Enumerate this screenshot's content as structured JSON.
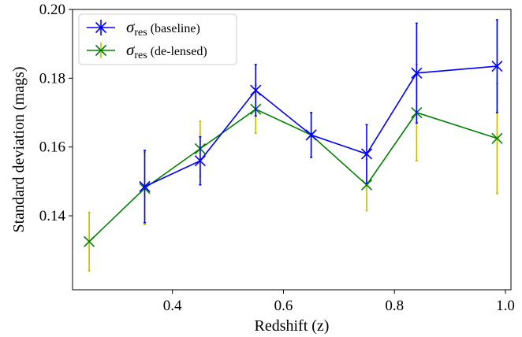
{
  "chart_data": {
    "type": "line",
    "title": "",
    "xlabel": "Redshift (z)",
    "ylabel": "Standard deviation (mags)",
    "xlim": [
      0.22,
      1.01
    ],
    "ylim": [
      0.1185,
      0.2
    ],
    "xticks": [
      0.4,
      0.6,
      0.8,
      1.0
    ],
    "xtick_labels": [
      "0.4",
      "0.6",
      "0.8",
      "1.0"
    ],
    "yticks": [
      0.14,
      0.16,
      0.18,
      0.2
    ],
    "ytick_labels": [
      "0.14",
      "0.16",
      "0.18",
      "0.20"
    ],
    "grid": false,
    "legend_position": "top-left",
    "series": [
      {
        "name": "baseline",
        "legend_symbol": "σ",
        "legend_subscript": "res",
        "legend_suffix": " (baseline)",
        "color": "#0000ff",
        "errcolor": "#0000ff",
        "marker": "x",
        "x": [
          0.35,
          0.45,
          0.55,
          0.65,
          0.75,
          0.84,
          0.985
        ],
        "y": [
          0.1485,
          0.156,
          0.1765,
          0.1635,
          0.158,
          0.1815,
          0.1835
        ],
        "err": [
          0.0105,
          0.007,
          0.0075,
          0.0065,
          0.0085,
          0.0145,
          0.0135
        ]
      },
      {
        "name": "de-lensed",
        "legend_symbol": "σ",
        "legend_subscript": "res",
        "legend_suffix": " (de-lensed)",
        "color": "#008000",
        "errcolor": "#bfbf00",
        "marker": "x",
        "x": [
          0.25,
          0.35,
          0.45,
          0.55,
          0.65,
          0.75,
          0.84,
          0.985
        ],
        "y": [
          0.1325,
          0.148,
          0.1595,
          0.171,
          0.1635,
          0.149,
          0.17,
          0.1625
        ],
        "err": [
          0.0085,
          0.0105,
          0.008,
          0.007,
          0.0065,
          0.0075,
          0.014,
          0.016
        ]
      }
    ]
  }
}
